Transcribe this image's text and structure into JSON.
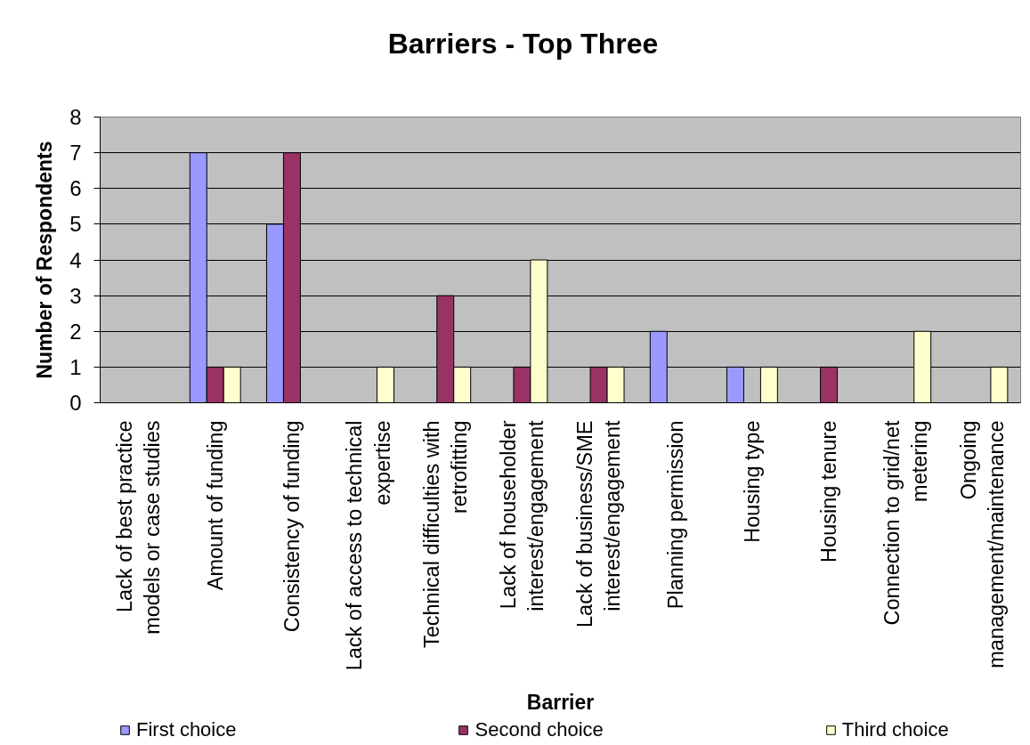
{
  "chart_data": {
    "type": "bar",
    "title": "Barriers - Top Three",
    "xlabel": "Barrier",
    "ylabel": "Number of Respondents",
    "categories": [
      "Lack of best practice models or case studies",
      "Amount of funding",
      "Consistency of funding",
      "Lack of access to technical expertise",
      "Technical difficulties with retrofitting",
      "Lack of householder interest/engagement",
      "Lack of business/SME interest/engagement",
      "Planning permission",
      "Housing type",
      "Housing tenure",
      "Connection to grid/net metering",
      "Ongoing management/maintenance"
    ],
    "series": [
      {
        "name": "First choice",
        "color": "#9999ff",
        "values": [
          0,
          7,
          5,
          0,
          0,
          0,
          0,
          2,
          1,
          0,
          0,
          0
        ]
      },
      {
        "name": "Second choice",
        "color": "#993366",
        "values": [
          0,
          1,
          7,
          0,
          3,
          1,
          1,
          0,
          0,
          1,
          0,
          0
        ]
      },
      {
        "name": "Third choice",
        "color": "#ffffcc",
        "values": [
          0,
          1,
          0,
          1,
          1,
          4,
          1,
          0,
          1,
          0,
          2,
          1
        ]
      }
    ],
    "ylim": [
      0,
      8
    ],
    "yticks": [
      0,
      1,
      2,
      3,
      4,
      5,
      6,
      7,
      8
    ],
    "grid": "y",
    "legend": "bottom"
  }
}
